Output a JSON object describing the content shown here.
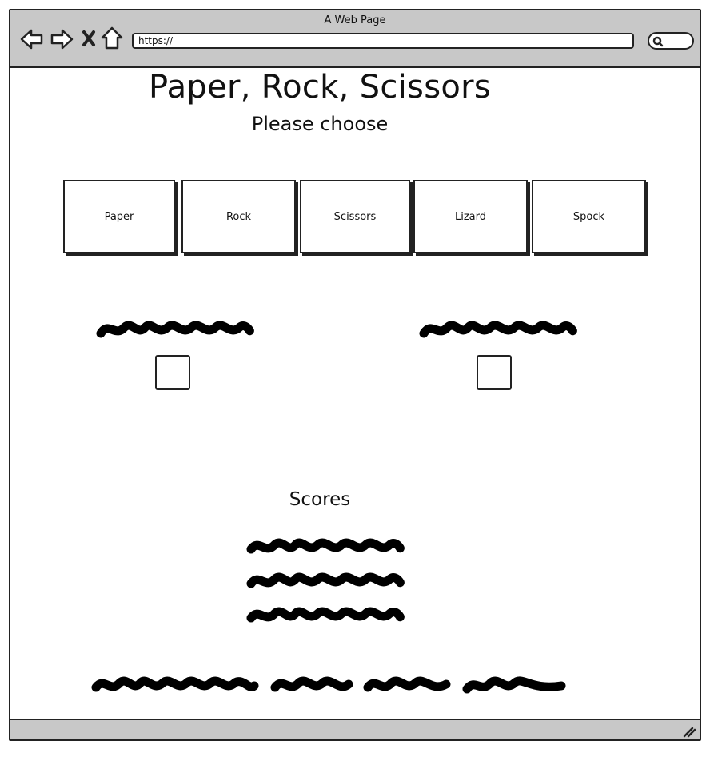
{
  "window": {
    "title": "A Web Page",
    "url": "https://"
  },
  "toolbar": {
    "icons": [
      "back-arrow-icon",
      "forward-arrow-icon",
      "close-x-icon",
      "home-icon",
      "search-icon"
    ]
  },
  "header": {
    "title": "Paper, Rock, Scissors",
    "subtitle": "Please choose"
  },
  "choices": [
    {
      "label": "Paper"
    },
    {
      "label": "Rock"
    },
    {
      "label": "Scissors"
    },
    {
      "label": "Lizard"
    },
    {
      "label": "Spock"
    }
  ],
  "scores": {
    "heading": "Scores"
  },
  "colors": {
    "chrome": "#c8c8c8",
    "ink": "#222222",
    "background": "#ffffff"
  }
}
